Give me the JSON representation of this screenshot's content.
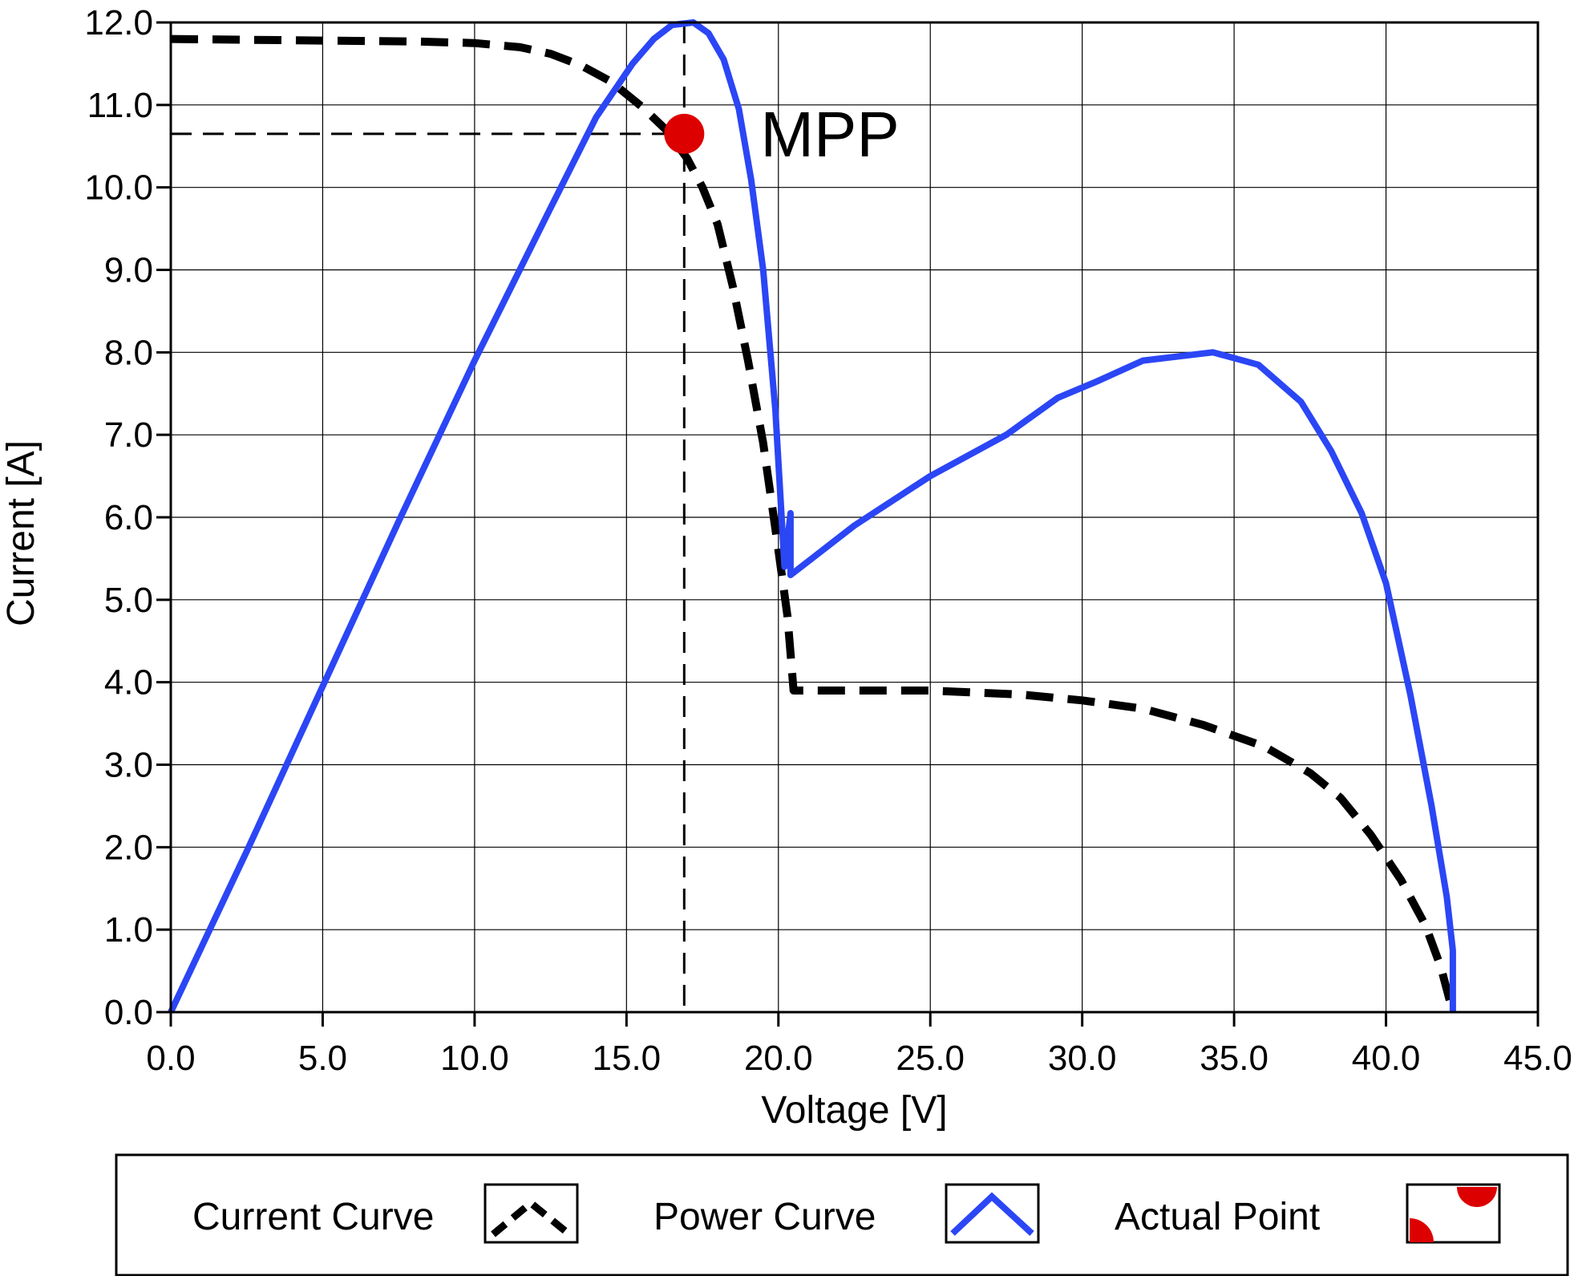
{
  "chart_data": {
    "type": "line",
    "xlabel": "Voltage [V]",
    "ylabel": "Current [A]",
    "xlim": [
      0,
      45
    ],
    "ylim": [
      0,
      12
    ],
    "x_ticks": [
      "0.0",
      "5.0",
      "10.0",
      "15.0",
      "20.0",
      "25.0",
      "30.0",
      "35.0",
      "40.0",
      "45.0"
    ],
    "y_ticks": [
      "0.0",
      "1.0",
      "2.0",
      "3.0",
      "4.0",
      "5.0",
      "6.0",
      "7.0",
      "8.0",
      "9.0",
      "10.0",
      "11.0",
      "12.0"
    ],
    "grid": true,
    "series": [
      {
        "name": "Current Curve",
        "style": "dashed",
        "color": "#000000",
        "x": [
          0,
          5,
          8,
          10,
          11.5,
          12.5,
          13.5,
          14.5,
          15.5,
          16.3,
          17.0,
          17.5,
          18.0,
          18.5,
          19.0,
          19.5,
          20.0,
          20.3,
          20.5,
          21.5,
          25,
          28,
          30,
          32,
          34,
          36,
          37.5,
          38.5,
          39.5,
          40.5,
          41.3,
          41.8,
          42.2
        ],
        "y": [
          11.8,
          11.78,
          11.77,
          11.75,
          11.7,
          11.62,
          11.48,
          11.28,
          10.98,
          10.7,
          10.35,
          10.0,
          9.55,
          8.8,
          7.9,
          6.9,
          5.6,
          4.8,
          3.9,
          3.9,
          3.9,
          3.85,
          3.78,
          3.68,
          3.48,
          3.22,
          2.9,
          2.6,
          2.15,
          1.6,
          1.05,
          0.55,
          0.0
        ]
      },
      {
        "name": "Power Curve",
        "style": "solid",
        "color": "#2b46f5",
        "x": [
          0,
          2.5,
          5,
          7.5,
          10,
          12.5,
          14,
          15.2,
          15.9,
          16.5,
          17.2,
          17.7,
          18.2,
          18.7,
          19.1,
          19.5,
          19.9,
          20.2,
          20.4,
          20.4,
          22.5,
          25,
          27.5,
          29.2,
          30.5,
          32,
          34.3,
          35.8,
          37.2,
          38.2,
          39.2,
          40.0,
          40.8,
          41.5,
          42.0,
          42.2,
          42.2
        ],
        "y": [
          0,
          1.95,
          3.95,
          5.95,
          7.9,
          9.75,
          10.85,
          11.5,
          11.8,
          11.97,
          12.0,
          11.87,
          11.55,
          10.95,
          10.1,
          9.0,
          7.3,
          5.4,
          6.05,
          5.3,
          5.9,
          6.5,
          7.0,
          7.45,
          7.65,
          7.9,
          8.0,
          7.85,
          7.4,
          6.8,
          6.05,
          5.2,
          3.85,
          2.5,
          1.4,
          0.75,
          0.0
        ]
      }
    ],
    "annotations": [
      {
        "label": "MPP",
        "x": 16.9,
        "y": 10.65,
        "marker_color": "#dd0000"
      }
    ],
    "legend": {
      "placement": "bottom",
      "entries": [
        "Current Curve",
        "Power Curve",
        "Actual Point"
      ]
    }
  }
}
